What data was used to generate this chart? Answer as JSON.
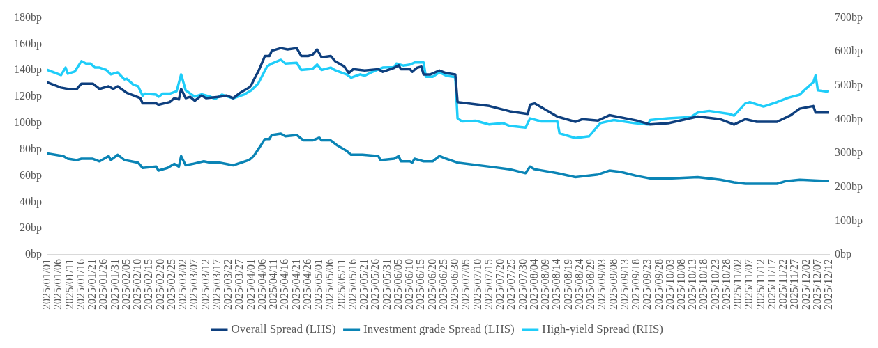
{
  "chart_data": {
    "type": "line",
    "xlim": [
      "2025-01-01",
      "2025-12-12"
    ],
    "xticks": [
      {
        "value": "2025-01-01",
        "label": "2025/01/01"
      },
      {
        "value": "2025-01-06",
        "label": "2025/01/06"
      },
      {
        "value": "2025-01-11",
        "label": "2025/01/11"
      },
      {
        "value": "2025-01-16",
        "label": "2025/01/16"
      },
      {
        "value": "2025-01-21",
        "label": "2025/01/21"
      },
      {
        "value": "2025-01-26",
        "label": "2025/01/26"
      },
      {
        "value": "2025-01-31",
        "label": "2025/01/31"
      },
      {
        "value": "2025-02-05",
        "label": "2025/02/05"
      },
      {
        "value": "2025-02-10",
        "label": "2025/02/10"
      },
      {
        "value": "2025-02-15",
        "label": "2025/02/15"
      },
      {
        "value": "2025-02-20",
        "label": "2025/02/20"
      },
      {
        "value": "2025-02-25",
        "label": "2025/02/25"
      },
      {
        "value": "2025-03-02",
        "label": "2025/03/02"
      },
      {
        "value": "2025-03-07",
        "label": "2025/03/07"
      },
      {
        "value": "2025-03-12",
        "label": "2025/03/12"
      },
      {
        "value": "2025-03-17",
        "label": "2025/03/17"
      },
      {
        "value": "2025-03-22",
        "label": "2025/03/22"
      },
      {
        "value": "2025-03-27",
        "label": "2025/03/27"
      },
      {
        "value": "2025-04-01",
        "label": "2025/04/01"
      },
      {
        "value": "2025-04-06",
        "label": "2025/04/06"
      },
      {
        "value": "2025-04-11",
        "label": "2025/04/11"
      },
      {
        "value": "2025-04-16",
        "label": "2025/04/16"
      },
      {
        "value": "2025-04-21",
        "label": "2025/04/21"
      },
      {
        "value": "2025-04-26",
        "label": "2025/04/26"
      },
      {
        "value": "2025-05-01",
        "label": "2025/05/01"
      },
      {
        "value": "2025-05-06",
        "label": "2025/05/06"
      },
      {
        "value": "2025-05-11",
        "label": "2025/05/11"
      },
      {
        "value": "2025-05-16",
        "label": "2025/05/16"
      },
      {
        "value": "2025-05-21",
        "label": "2025/05/21"
      },
      {
        "value": "2025-05-26",
        "label": "2025/05/26"
      },
      {
        "value": "2025-05-31",
        "label": "2025/05/31"
      },
      {
        "value": "2025-06-05",
        "label": "2025/06/05"
      },
      {
        "value": "2025-06-10",
        "label": "2025/06/10"
      },
      {
        "value": "2025-06-15",
        "label": "2025/06/15"
      },
      {
        "value": "2025-06-20",
        "label": "2025/06/20"
      },
      {
        "value": "2025-06-25",
        "label": "2025/06/25"
      },
      {
        "value": "2025-06-30",
        "label": "2025/06/30"
      },
      {
        "value": "2025-07-05",
        "label": "2025/07/05"
      },
      {
        "value": "2025-07-10",
        "label": "2025/07/10"
      },
      {
        "value": "2025-07-15",
        "label": "2025/07/15"
      },
      {
        "value": "2025-07-20",
        "label": "2025/07/20"
      },
      {
        "value": "2025-07-25",
        "label": "2025/07/25"
      },
      {
        "value": "2025-07-30",
        "label": "2025/07/30"
      },
      {
        "value": "2025-08-04",
        "label": "2025/08/04"
      },
      {
        "value": "2025-08-09",
        "label": "2025/08/09"
      },
      {
        "value": "2025-08-14",
        "label": "2025/08/14"
      },
      {
        "value": "2025-08-19",
        "label": "2025/08/19"
      },
      {
        "value": "2025-08-24",
        "label": "2025/08/24"
      },
      {
        "value": "2025-08-29",
        "label": "2025/08/29"
      },
      {
        "value": "2025-09-03",
        "label": "2025/09/03"
      },
      {
        "value": "2025-09-08",
        "label": "2025/09/08"
      },
      {
        "value": "2025-09-13",
        "label": "2025/09/13"
      },
      {
        "value": "2025-09-18",
        "label": "2025/09/18"
      },
      {
        "value": "2025-09-23",
        "label": "2025/09/23"
      },
      {
        "value": "2025-09-28",
        "label": "2025/09/28"
      },
      {
        "value": "2025-10-03",
        "label": "2025/10/03"
      },
      {
        "value": "2025-10-08",
        "label": "2025/10/08"
      },
      {
        "value": "2025-10-13",
        "label": "2025/10/13"
      },
      {
        "value": "2025-10-18",
        "label": "2025/10/18"
      },
      {
        "value": "2025-10-23",
        "label": "2025/10/23"
      },
      {
        "value": "2025-10-28",
        "label": "2025/10/28"
      },
      {
        "value": "2025-11-02",
        "label": "2025/11/02"
      },
      {
        "value": "2025-11-07",
        "label": "2025/11/07"
      },
      {
        "value": "2025-11-12",
        "label": "2025/11/12"
      },
      {
        "value": "2025-11-17",
        "label": "2025/11/17"
      },
      {
        "value": "2025-11-22",
        "label": "2025/11/22"
      },
      {
        "value": "2025-11-27",
        "label": "2025/11/27"
      },
      {
        "value": "2025-12-02",
        "label": "2025/12/02"
      },
      {
        "value": "2025-12-07",
        "label": "2025/12/07"
      },
      {
        "value": "2025-12-12",
        "label": "2025/12/12"
      }
    ],
    "ylim": [
      0,
      180
    ],
    "yticks": [
      {
        "value": 0,
        "label": "0bp"
      },
      {
        "value": 20,
        "label": "20bp"
      },
      {
        "value": 40,
        "label": "40bp"
      },
      {
        "value": 60,
        "label": "60bp"
      },
      {
        "value": 80,
        "label": "80bp"
      },
      {
        "value": 100,
        "label": "100bp"
      },
      {
        "value": 120,
        "label": "120bp"
      },
      {
        "value": 140,
        "label": "140bp"
      },
      {
        "value": 160,
        "label": "160bp"
      },
      {
        "value": 180,
        "label": "180bp"
      }
    ],
    "y2lim": [
      0,
      700
    ],
    "y2ticks": [
      {
        "value": 0,
        "label": "0bp"
      },
      {
        "value": 100,
        "label": "100bp"
      },
      {
        "value": 200,
        "label": "200bp"
      },
      {
        "value": 300,
        "label": "300bp"
      },
      {
        "value": 400,
        "label": "400bp"
      },
      {
        "value": 500,
        "label": "500bp"
      },
      {
        "value": 600,
        "label": "600bp"
      },
      {
        "value": 700,
        "label": "700bp"
      }
    ],
    "grid": false,
    "legend": "bottom",
    "marker": "none",
    "line_style": "solid",
    "series": [
      {
        "name": "Overall Spread (LHS)",
        "color": "#0e3f7e",
        "axis": "y",
        "x": [
          "2025-01-01",
          "2025-01-07",
          "2025-01-10",
          "2025-01-14",
          "2025-01-16",
          "2025-01-21",
          "2025-01-24",
          "2025-01-28",
          "2025-01-30",
          "2025-02-01",
          "2025-02-05",
          "2025-02-08",
          "2025-02-11",
          "2025-02-12",
          "2025-02-18",
          "2025-02-19",
          "2025-02-24",
          "2025-02-26",
          "2025-02-28",
          "2025-03-01",
          "2025-03-03",
          "2025-03-05",
          "2025-03-07",
          "2025-03-10",
          "2025-03-12",
          "2025-03-18",
          "2025-03-21",
          "2025-03-24",
          "2025-03-27",
          "2025-03-31",
          "2025-04-01",
          "2025-04-03",
          "2025-04-04",
          "2025-04-07",
          "2025-04-09",
          "2025-04-10",
          "2025-04-14",
          "2025-04-17",
          "2025-04-21",
          "2025-04-23",
          "2025-04-26",
          "2025-04-28",
          "2025-04-30",
          "2025-05-02",
          "2025-05-06",
          "2025-05-08",
          "2025-05-12",
          "2025-05-14",
          "2025-05-16",
          "2025-05-21",
          "2025-05-27",
          "2025-05-29",
          "2025-06-03",
          "2025-06-05",
          "2025-06-06",
          "2025-06-10",
          "2025-06-11",
          "2025-06-13",
          "2025-06-15",
          "2025-06-16",
          "2025-06-19",
          "2025-06-23",
          "2025-06-26",
          "2025-06-30",
          "2025-07-01",
          "2025-07-15",
          "2025-07-24",
          "2025-08-01",
          "2025-08-02",
          "2025-08-04",
          "2025-08-14",
          "2025-08-22",
          "2025-08-25",
          "2025-09-01",
          "2025-09-06",
          "2025-09-18",
          "2025-09-24",
          "2025-10-02",
          "2025-10-15",
          "2025-10-25",
          "2025-10-31",
          "2025-11-05",
          "2025-11-10",
          "2025-11-19",
          "2025-11-25",
          "2025-11-29",
          "2025-12-05",
          "2025-12-06",
          "2025-12-12"
        ],
        "values": [
          131,
          127,
          126,
          126,
          130,
          130,
          126,
          128,
          126,
          128,
          123,
          121,
          119,
          115,
          115,
          114,
          116,
          119,
          118,
          126,
          119,
          120,
          117,
          121,
          119,
          120,
          121,
          119,
          123,
          127,
          129,
          136,
          139,
          151,
          151,
          155,
          157,
          156,
          157,
          151,
          151,
          152,
          156,
          150,
          151,
          147,
          143,
          138,
          141,
          140,
          141,
          139,
          142,
          144,
          141,
          141,
          139,
          142,
          143,
          137,
          137,
          140,
          138,
          137,
          116,
          113,
          109,
          107,
          114,
          115,
          105,
          101,
          103,
          102,
          106,
          102,
          99,
          100,
          105,
          103,
          99,
          103,
          101,
          101,
          106,
          111,
          113,
          108,
          108
        ]
      },
      {
        "name": "Investment grade Spread (LHS)",
        "color": "#0a84b5",
        "axis": "y",
        "x": [
          "2025-01-01",
          "2025-01-08",
          "2025-01-10",
          "2025-01-14",
          "2025-01-16",
          "2025-01-21",
          "2025-01-24",
          "2025-01-28",
          "2025-01-29",
          "2025-02-01",
          "2025-02-04",
          "2025-02-07",
          "2025-02-10",
          "2025-02-12",
          "2025-02-18",
          "2025-02-19",
          "2025-02-23",
          "2025-02-26",
          "2025-02-28",
          "2025-03-01",
          "2025-03-03",
          "2025-03-06",
          "2025-03-11",
          "2025-03-14",
          "2025-03-18",
          "2025-03-24",
          "2025-03-31",
          "2025-04-02",
          "2025-04-04",
          "2025-04-07",
          "2025-04-09",
          "2025-04-10",
          "2025-04-14",
          "2025-04-16",
          "2025-04-21",
          "2025-04-24",
          "2025-04-28",
          "2025-05-01",
          "2025-05-02",
          "2025-05-06",
          "2025-05-09",
          "2025-05-13",
          "2025-05-15",
          "2025-05-20",
          "2025-05-27",
          "2025-05-28",
          "2025-06-03",
          "2025-06-05",
          "2025-06-06",
          "2025-06-10",
          "2025-06-11",
          "2025-06-12",
          "2025-06-16",
          "2025-06-20",
          "2025-06-23",
          "2025-06-26",
          "2025-07-01",
          "2025-07-15",
          "2025-07-24",
          "2025-07-31",
          "2025-08-02",
          "2025-08-04",
          "2025-08-14",
          "2025-08-22",
          "2025-09-01",
          "2025-09-06",
          "2025-09-11",
          "2025-09-18",
          "2025-09-24",
          "2025-10-02",
          "2025-10-15",
          "2025-10-25",
          "2025-10-31",
          "2025-11-05",
          "2025-11-19",
          "2025-11-23",
          "2025-11-29",
          "2025-12-12"
        ],
        "values": [
          77,
          75,
          73,
          72,
          73,
          73,
          71,
          75,
          72,
          76,
          72,
          71,
          70,
          66,
          67,
          64,
          66,
          69,
          67,
          75,
          68,
          69,
          71,
          70,
          70,
          68,
          72,
          75,
          80,
          88,
          88,
          91,
          92,
          90,
          91,
          87,
          87,
          89,
          87,
          87,
          83,
          79,
          76,
          76,
          75,
          72,
          73,
          75,
          71,
          71,
          70,
          73,
          71,
          71,
          75,
          73,
          70,
          67,
          65,
          62,
          67,
          65,
          62,
          59,
          61,
          64,
          63,
          60,
          58,
          58,
          59,
          57,
          55,
          54,
          54,
          56,
          57,
          56
        ]
      },
      {
        "name": "High-yield Spread (RHS)",
        "color": "#1fcdf9",
        "axis": "y2",
        "x": [
          "2025-01-01",
          "2025-01-07",
          "2025-01-09",
          "2025-01-10",
          "2025-01-13",
          "2025-01-16",
          "2025-01-18",
          "2025-01-20",
          "2025-01-22",
          "2025-01-24",
          "2025-01-27",
          "2025-01-29",
          "2025-02-01",
          "2025-02-04",
          "2025-02-05",
          "2025-02-08",
          "2025-02-10",
          "2025-02-12",
          "2025-02-13",
          "2025-02-18",
          "2025-02-19",
          "2025-02-21",
          "2025-02-24",
          "2025-02-27",
          "2025-03-01",
          "2025-03-03",
          "2025-03-07",
          "2025-03-10",
          "2025-03-14",
          "2025-03-16",
          "2025-03-19",
          "2025-03-24",
          "2025-03-26",
          "2025-03-29",
          "2025-04-01",
          "2025-04-04",
          "2025-04-08",
          "2025-04-10",
          "2025-04-14",
          "2025-04-16",
          "2025-04-21",
          "2025-04-23",
          "2025-04-28",
          "2025-04-30",
          "2025-05-02",
          "2025-05-06",
          "2025-05-08",
          "2025-05-13",
          "2025-05-15",
          "2025-05-19",
          "2025-05-21",
          "2025-05-24",
          "2025-05-29",
          "2025-06-03",
          "2025-06-04",
          "2025-06-07",
          "2025-06-10",
          "2025-06-12",
          "2025-06-16",
          "2025-06-17",
          "2025-06-20",
          "2025-06-23",
          "2025-06-26",
          "2025-06-30",
          "2025-07-01",
          "2025-07-03",
          "2025-07-09",
          "2025-07-15",
          "2025-07-21",
          "2025-07-24",
          "2025-07-31",
          "2025-08-02",
          "2025-08-07",
          "2025-08-14",
          "2025-08-15",
          "2025-08-22",
          "2025-08-28",
          "2025-09-02",
          "2025-09-08",
          "2025-09-17",
          "2025-09-23",
          "2025-09-24",
          "2025-09-27",
          "2025-10-02",
          "2025-10-12",
          "2025-10-15",
          "2025-10-20",
          "2025-10-29",
          "2025-10-31",
          "2025-11-05",
          "2025-11-07",
          "2025-11-13",
          "2025-11-19",
          "2025-11-24",
          "2025-11-29",
          "2025-12-01",
          "2025-12-05",
          "2025-12-06",
          "2025-12-07",
          "2025-12-11",
          "2025-12-12"
        ],
        "values": [
          546,
          531,
          553,
          535,
          541,
          572,
          565,
          565,
          553,
          553,
          546,
          533,
          539,
          518,
          520,
          502,
          498,
          470,
          476,
          473,
          467,
          476,
          476,
          483,
          533,
          486,
          467,
          474,
          467,
          460,
          473,
          462,
          467,
          474,
          486,
          506,
          557,
          565,
          576,
          565,
          567,
          546,
          549,
          562,
          546,
          553,
          545,
          533,
          523,
          533,
          529,
          539,
          553,
          554,
          565,
          559,
          562,
          568,
          568,
          526,
          526,
          539,
          529,
          525,
          403,
          394,
          396,
          385,
          389,
          381,
          376,
          403,
          394,
          394,
          359,
          345,
          350,
          389,
          398,
          389,
          385,
          398,
          400,
          403,
          407,
          420,
          425,
          416,
          411,
          447,
          451,
          438,
          451,
          464,
          473,
          486,
          510,
          530,
          486,
          482,
          484
        ]
      }
    ]
  }
}
